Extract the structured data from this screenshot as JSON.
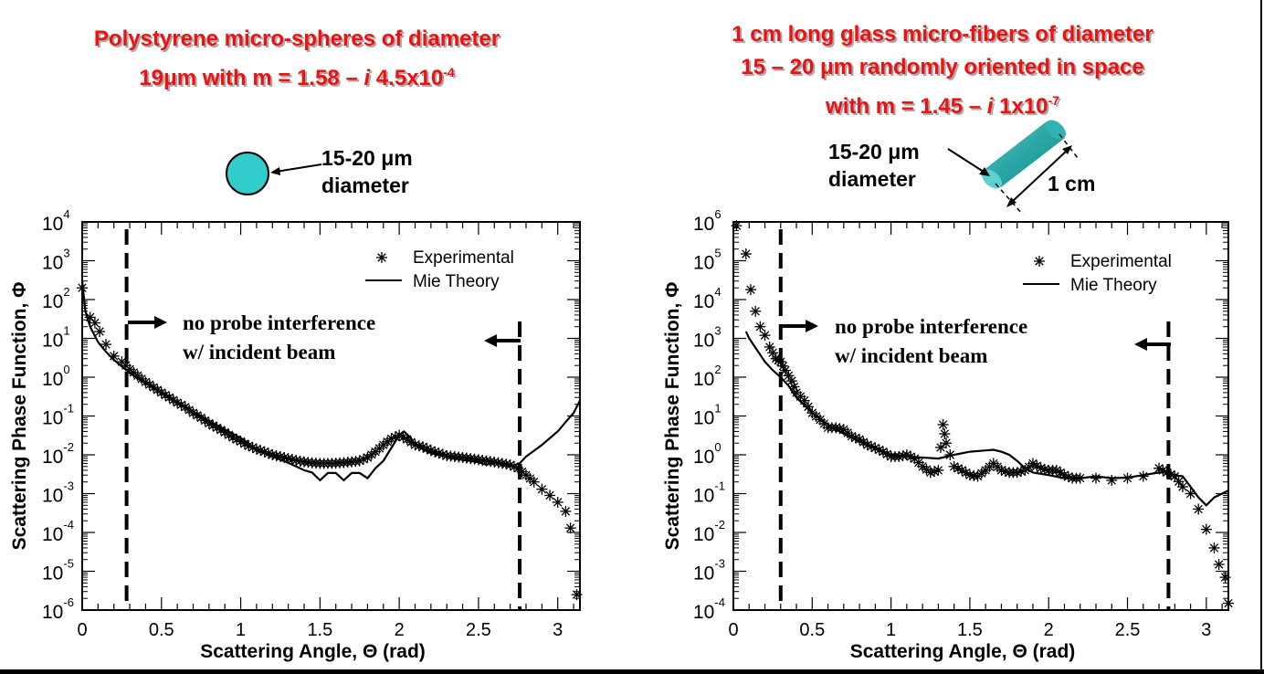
{
  "left_panel": {
    "title_line1": "Polystyrene micro-spheres of diameter",
    "title_line2_pre": "19μm with m = 1.58 – ",
    "title_line2_i": "i",
    "title_line2_post": " 4.5x10",
    "title_line2_exp": "-4",
    "illustration_label_line1": "15-20 μm",
    "illustration_label_line2": "diameter",
    "illustration_color": "#33cccc"
  },
  "right_panel": {
    "title_line1": "1 cm long glass micro-fibers of diameter",
    "title_line2": "15 – 20 μm randomly oriented in space",
    "title_line3_pre": "with m = 1.45 – ",
    "title_line3_i": "i",
    "title_line3_post": " 1x10",
    "title_line3_exp": "-7",
    "illustration_label_line1": "15-20 μm",
    "illustration_label_line2": "diameter",
    "length_label": "1 cm",
    "illustration_color": "#2aa5a5"
  },
  "colors": {
    "title": "#ee1111",
    "ink": "#000000"
  },
  "chart_data": [
    {
      "type": "scatter",
      "title": "",
      "xlabel": "Scattering Angle, Θ (rad)",
      "ylabel": "Scattering Phase Function, Φ",
      "xlim": [
        0,
        3.14
      ],
      "ylim_log10": [
        -6,
        4
      ],
      "yscale": "log",
      "xticks": [
        0,
        0.5,
        1,
        1.5,
        2,
        2.5,
        3
      ],
      "xtick_labels": [
        "0",
        "0.5",
        "1",
        "1.5",
        "2",
        "2.5",
        "3"
      ],
      "yticks_exp": [
        4,
        3,
        2,
        1,
        0,
        -1,
        -2,
        -3,
        -4,
        -5,
        -6
      ],
      "legend": {
        "position": "top-right",
        "entries": [
          {
            "marker": "*",
            "label": "Experimental"
          },
          {
            "marker": "line",
            "label": "Mie Theory"
          }
        ]
      },
      "annotation_line1": "no probe interference",
      "annotation_line2": "w/ incident beam",
      "vlines": [
        0.28,
        2.76
      ],
      "series": [
        {
          "name": "Experimental",
          "style": "markers",
          "x": [
            0.0,
            0.05,
            0.08,
            0.11,
            0.15,
            0.2,
            0.25,
            0.3,
            0.35,
            0.4,
            0.45,
            0.5,
            0.55,
            0.6,
            0.65,
            0.7,
            0.75,
            0.8,
            0.85,
            0.9,
            0.95,
            1.0,
            1.05,
            1.1,
            1.15,
            1.2,
            1.25,
            1.3,
            1.35,
            1.4,
            1.45,
            1.5,
            1.55,
            1.6,
            1.65,
            1.7,
            1.75,
            1.8,
            1.85,
            1.9,
            1.95,
            2.0,
            2.05,
            2.1,
            2.15,
            2.2,
            2.25,
            2.3,
            2.35,
            2.4,
            2.45,
            2.5,
            2.55,
            2.6,
            2.65,
            2.7,
            2.75,
            2.8,
            2.85,
            2.9,
            2.95,
            3.0,
            3.05,
            3.08,
            3.12
          ],
          "y": [
            200,
            35,
            25,
            15,
            7,
            3.5,
            2.5,
            1.6,
            1.1,
            0.75,
            0.55,
            0.4,
            0.3,
            0.22,
            0.17,
            0.12,
            0.09,
            0.065,
            0.05,
            0.038,
            0.028,
            0.022,
            0.017,
            0.014,
            0.012,
            0.01,
            0.009,
            0.008,
            0.0072,
            0.0066,
            0.0062,
            0.006,
            0.006,
            0.0061,
            0.0063,
            0.0066,
            0.007,
            0.0085,
            0.012,
            0.018,
            0.026,
            0.032,
            0.025,
            0.018,
            0.016,
            0.013,
            0.011,
            0.0095,
            0.009,
            0.0085,
            0.008,
            0.0075,
            0.007,
            0.0065,
            0.006,
            0.0055,
            0.0045,
            0.003,
            0.002,
            0.0013,
            0.0009,
            0.0006,
            0.00035,
            0.00013,
            2.5e-06
          ]
        },
        {
          "name": "Mie Theory",
          "style": "line",
          "x": [
            0.0,
            0.02,
            0.05,
            0.1,
            0.15,
            0.2,
            0.25,
            0.3,
            0.4,
            0.5,
            0.6,
            0.7,
            0.8,
            0.9,
            1.0,
            1.05,
            1.1,
            1.15,
            1.2,
            1.25,
            1.3,
            1.35,
            1.4,
            1.45,
            1.5,
            1.55,
            1.6,
            1.65,
            1.7,
            1.75,
            1.8,
            1.85,
            1.9,
            1.95,
            2.0,
            2.03,
            2.07,
            2.1,
            2.15,
            2.2,
            2.3,
            2.4,
            2.5,
            2.55,
            2.6,
            2.65,
            2.7,
            2.76,
            2.8,
            2.9,
            3.0,
            3.05,
            3.1,
            3.14
          ],
          "y": [
            300,
            50,
            20,
            8,
            4.5,
            2.8,
            1.9,
            1.3,
            0.7,
            0.4,
            0.22,
            0.13,
            0.075,
            0.045,
            0.027,
            0.02,
            0.013,
            0.011,
            0.009,
            0.0075,
            0.0062,
            0.005,
            0.004,
            0.0035,
            0.0022,
            0.0034,
            0.0034,
            0.0022,
            0.0034,
            0.0034,
            0.0025,
            0.0045,
            0.007,
            0.015,
            0.032,
            0.04,
            0.028,
            0.018,
            0.014,
            0.011,
            0.009,
            0.0075,
            0.0065,
            0.0055,
            0.0065,
            0.0055,
            0.005,
            0.006,
            0.009,
            0.018,
            0.04,
            0.07,
            0.12,
            0.25
          ]
        }
      ]
    },
    {
      "type": "scatter",
      "title": "",
      "xlabel": "Scattering Angle, Θ (rad)",
      "ylabel": "Scattering Phase Function, Φ",
      "xlim": [
        0,
        3.14
      ],
      "ylim_log10": [
        -4,
        6
      ],
      "yscale": "log",
      "xticks": [
        0,
        0.5,
        1,
        1.5,
        2,
        2.5,
        3
      ],
      "xtick_labels": [
        "0",
        "0.5",
        "1",
        "1.5",
        "2",
        "2.5",
        "3"
      ],
      "yticks_exp": [
        6,
        5,
        4,
        3,
        2,
        1,
        0,
        -1,
        -2,
        -3,
        -4
      ],
      "legend": {
        "position": "top-right",
        "entries": [
          {
            "marker": "*",
            "label": "Experimental"
          },
          {
            "marker": "line",
            "label": "Mie Theory"
          }
        ]
      },
      "annotation_line1": "no probe interference",
      "annotation_line2": "w/ incident beam",
      "vlines": [
        0.3,
        2.76
      ],
      "series": [
        {
          "name": "Experimental",
          "style": "markers",
          "x": [
            0.02,
            0.08,
            0.11,
            0.14,
            0.17,
            0.2,
            0.23,
            0.27,
            0.3,
            0.33,
            0.37,
            0.4,
            0.45,
            0.5,
            0.55,
            0.6,
            0.65,
            0.7,
            0.75,
            0.8,
            0.85,
            0.9,
            0.95,
            1.0,
            1.05,
            1.1,
            1.15,
            1.2,
            1.25,
            1.3,
            1.33,
            1.35,
            1.4,
            1.45,
            1.5,
            1.55,
            1.6,
            1.65,
            1.7,
            1.75,
            1.8,
            1.85,
            1.9,
            1.95,
            2.0,
            2.05,
            2.1,
            2.15,
            2.2,
            2.3,
            2.4,
            2.5,
            2.6,
            2.7,
            2.75,
            2.8,
            2.85,
            2.9,
            2.95,
            3.0,
            3.05,
            3.08,
            3.12,
            3.14
          ],
          "y": [
            800000,
            150000,
            18000,
            5000,
            2000,
            1200,
            600,
            300,
            250,
            150,
            80,
            40,
            25,
            12,
            8,
            5,
            5,
            4.5,
            3,
            2.5,
            1.8,
            1.5,
            1.2,
            0.9,
            0.9,
            1.0,
            0.8,
            0.5,
            0.35,
            0.4,
            6,
            2,
            0.5,
            0.4,
            0.3,
            0.28,
            0.4,
            0.6,
            0.4,
            0.35,
            0.35,
            0.4,
            0.6,
            0.45,
            0.4,
            0.4,
            0.3,
            0.25,
            0.25,
            0.25,
            0.22,
            0.25,
            0.28,
            0.45,
            0.35,
            0.28,
            0.15,
            0.1,
            0.04,
            0.012,
            0.004,
            0.0015,
            0.0007,
            0.00015
          ]
        },
        {
          "name": "Mie Theory",
          "style": "line",
          "x": [
            0.08,
            0.1,
            0.15,
            0.2,
            0.25,
            0.3,
            0.35,
            0.4,
            0.5,
            0.6,
            0.7,
            0.8,
            0.9,
            1.0,
            1.1,
            1.2,
            1.3,
            1.4,
            1.5,
            1.6,
            1.65,
            1.7,
            1.75,
            1.8,
            1.85,
            1.9,
            2.0,
            2.1,
            2.2,
            2.3,
            2.4,
            2.5,
            2.6,
            2.7,
            2.76,
            2.8,
            2.85,
            2.9,
            2.95,
            3.0,
            3.05,
            3.1,
            3.14
          ],
          "y": [
            1500,
            1000,
            500,
            250,
            150,
            100,
            60,
            30,
            12,
            6,
            3.5,
            2.2,
            1.5,
            1.0,
            0.9,
            0.85,
            0.8,
            1.0,
            1.2,
            1.3,
            1.35,
            1.2,
            1.0,
            0.7,
            0.45,
            0.35,
            0.3,
            0.25,
            0.25,
            0.28,
            0.25,
            0.26,
            0.3,
            0.35,
            0.35,
            0.3,
            0.28,
            0.15,
            0.08,
            0.05,
            0.08,
            0.1,
            0.12
          ]
        }
      ]
    }
  ]
}
